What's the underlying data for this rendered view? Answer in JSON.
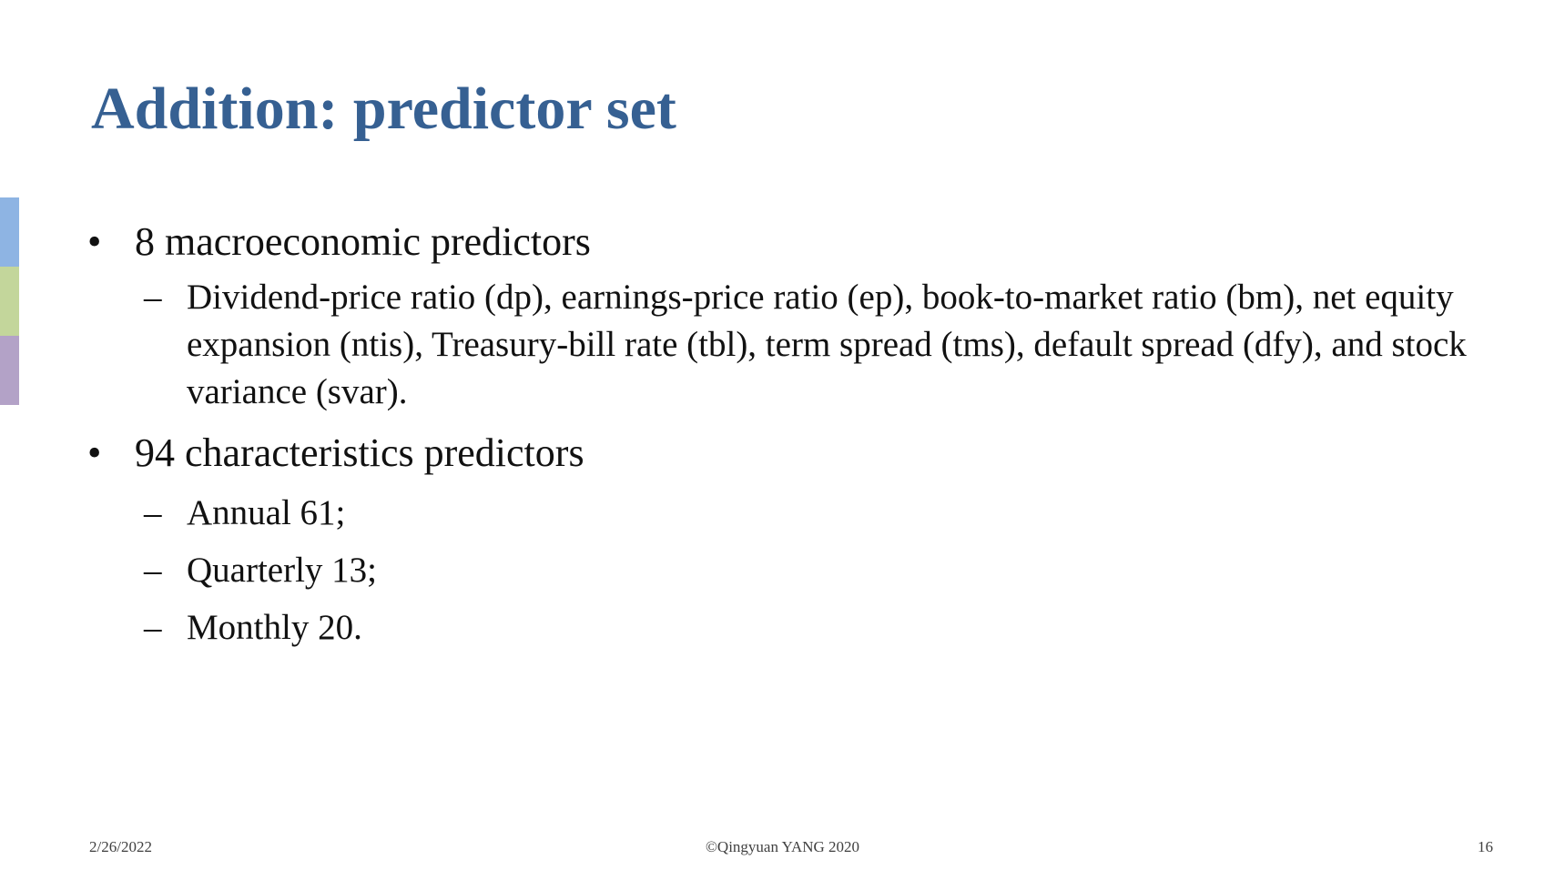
{
  "slide": {
    "title": "Addition: predictor set",
    "accent_colors": [
      "#8eb4e3",
      "#c3d69b",
      "#b3a2c7"
    ],
    "title_color": "#366092"
  },
  "bullets": [
    {
      "text": "8 macroeconomic predictors",
      "subitems": [
        "Dividend-price ratio (dp), earnings-price ratio (ep), book-to-market ratio (bm), net equity expansion (ntis), Treasury-bill rate (tbl), term spread (tms), default spread (dfy), and stock variance (svar)."
      ]
    },
    {
      "text": "94 characteristics predictors",
      "subitems": [
        "Annual 61;",
        "Quarterly 13;",
        "Monthly 20."
      ]
    }
  ],
  "markers": {
    "bullet": "•",
    "dash": "–"
  },
  "footer": {
    "date": "2/26/2022",
    "copyright": "©Qingyuan YANG 2020",
    "page_number": "16"
  }
}
